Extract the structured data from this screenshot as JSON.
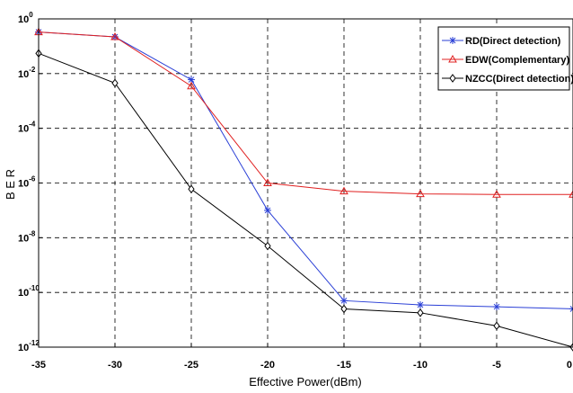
{
  "chart_data": {
    "type": "line",
    "xlabel": "Effective Power(dBm)",
    "ylabel": "B E R",
    "xlim": [
      -35,
      0
    ],
    "ylim_log10": [
      -12,
      0
    ],
    "yscale": "log",
    "grid": true,
    "grid_style": "dashed",
    "legend_position": "top-right",
    "x_ticks": [
      "-35",
      "-30",
      "-25",
      "-20",
      "-15",
      "-10",
      "-5",
      "0"
    ],
    "y_ticks": [
      {
        "base": "10",
        "exp": "0"
      },
      {
        "base": "10",
        "exp": "-2"
      },
      {
        "base": "10",
        "exp": "-4"
      },
      {
        "base": "10",
        "exp": "-6"
      },
      {
        "base": "10",
        "exp": "-8"
      },
      {
        "base": "10",
        "exp": "-10"
      },
      {
        "base": "10",
        "exp": "-12"
      }
    ],
    "x": [
      -35,
      -30,
      -25,
      -20,
      -15,
      -10,
      -5,
      0
    ],
    "series": [
      {
        "name": "RD(Direct detection)",
        "color": "#2a3fd6",
        "marker": "star",
        "values": [
          0.33,
          0.22,
          0.006,
          1e-07,
          5e-11,
          3.5e-11,
          3e-11,
          2.5e-11
        ]
      },
      {
        "name": "EDW(Complementary)",
        "color": "#e02020",
        "marker": "triangle",
        "values": [
          0.33,
          0.22,
          0.0035,
          1e-06,
          5e-07,
          4e-07,
          3.8e-07,
          3.8e-07
        ]
      },
      {
        "name": "NZCC(Direct detection)",
        "color": "#000000",
        "marker": "diamond",
        "values": [
          0.055,
          0.0045,
          6e-07,
          5e-09,
          2.5e-11,
          1.8e-11,
          6e-12,
          1e-12
        ]
      }
    ]
  }
}
